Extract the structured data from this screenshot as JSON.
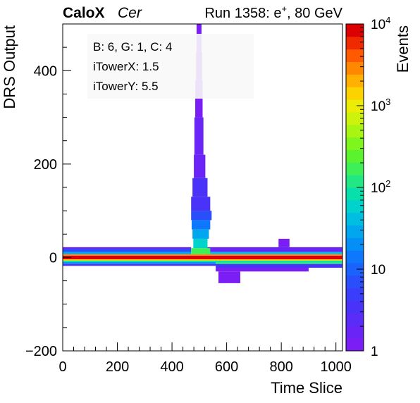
{
  "header": {
    "experiment": "CaloX",
    "channel": "Cer",
    "run_prefix": "Run 1358: e",
    "run_sup": "+",
    "run_suffix": ", 80 GeV"
  },
  "info_box": {
    "line1": "B: 6, G: 1, C: 4",
    "line2": "iTowerX: 1.5",
    "line3": "iTowerY: 5.5"
  },
  "colors": {
    "palette": [
      "#7b1ef5",
      "#6a25f6",
      "#5a2cf7",
      "#4a33f8",
      "#3a3df9",
      "#2a4efa",
      "#1a62fb",
      "#0d78fc",
      "#048ff7",
      "#00a6ee",
      "#00bde2",
      "#00d2cc",
      "#08e0ac",
      "#22e884",
      "#3ef058",
      "#5af32e",
      "#7ff51e",
      "#a8f514",
      "#cdf20c",
      "#ecec06",
      "#fcd200",
      "#ffb000",
      "#ff8800",
      "#ff5a00",
      "#f02a00",
      "#dd0000"
    ]
  },
  "chart_data": {
    "type": "heatmap",
    "xlabel": "Time Slice",
    "ylabel": "DRS Output",
    "zlabel": "Events",
    "xlim": [
      0,
      1024
    ],
    "ylim": [
      -200,
      500
    ],
    "zlim": [
      1,
      10000
    ],
    "z_scale": "log",
    "x_ticks": [
      0,
      200,
      400,
      600,
      800,
      1000
    ],
    "x_tick_labels": [
      "0",
      "200",
      "400",
      "600",
      "800",
      "1000"
    ],
    "y_ticks": [
      -200,
      0,
      200,
      400
    ],
    "y_tick_labels": [
      "−200",
      "0",
      "200",
      "400"
    ],
    "z_ticks": [
      {
        "value": 1,
        "base": "1",
        "exp": ""
      },
      {
        "value": 10,
        "base": "10",
        "exp": ""
      },
      {
        "value": 100,
        "base": "10",
        "exp": "2"
      },
      {
        "value": 1000,
        "base": "10",
        "exp": "3"
      },
      {
        "value": 10000,
        "base": "10",
        "exp": "4"
      }
    ],
    "bins": [
      {
        "x": [
          0,
          1024
        ],
        "y": [
          -4,
          4
        ],
        "z": 8000
      },
      {
        "x": [
          0,
          1024
        ],
        "y": [
          4,
          7
        ],
        "z": 2500
      },
      {
        "x": [
          0,
          1024
        ],
        "y": [
          -7,
          -4
        ],
        "z": 1500
      },
      {
        "x": [
          0,
          470
        ],
        "y": [
          7,
          12
        ],
        "z": 30
      },
      {
        "x": [
          0,
          470
        ],
        "y": [
          12,
          18
        ],
        "z": 6
      },
      {
        "x": [
          0,
          470
        ],
        "y": [
          18,
          22
        ],
        "z": 2
      },
      {
        "x": [
          0,
          1024
        ],
        "y": [
          -10,
          -7
        ],
        "z": 80
      },
      {
        "x": [
          0,
          560
        ],
        "y": [
          -14,
          -10
        ],
        "z": 20
      },
      {
        "x": [
          0,
          560
        ],
        "y": [
          -18,
          -14
        ],
        "z": 4
      },
      {
        "x": [
          560,
          1024
        ],
        "y": [
          -14,
          -10
        ],
        "z": 100
      },
      {
        "x": [
          560,
          1024
        ],
        "y": [
          -22,
          -14
        ],
        "z": 3
      },
      {
        "x": [
          560,
          900
        ],
        "y": [
          -30,
          -22
        ],
        "z": 1
      },
      {
        "x": [
          570,
          650
        ],
        "y": [
          -55,
          -30
        ],
        "z": 1
      },
      {
        "x": [
          530,
          1024
        ],
        "y": [
          7,
          12
        ],
        "z": 40
      },
      {
        "x": [
          530,
          1024
        ],
        "y": [
          12,
          22
        ],
        "z": 2
      },
      {
        "x": [
          790,
          830
        ],
        "y": [
          22,
          40
        ],
        "z": 1
      },
      {
        "x": [
          470,
          540
        ],
        "y": [
          7,
          20
        ],
        "z": 200
      },
      {
        "x": [
          478,
          530
        ],
        "y": [
          20,
          40
        ],
        "z": 60
      },
      {
        "x": [
          475,
          535
        ],
        "y": [
          40,
          60
        ],
        "z": 25
      },
      {
        "x": [
          472,
          540
        ],
        "y": [
          60,
          80
        ],
        "z": 12
      },
      {
        "x": [
          470,
          545
        ],
        "y": [
          80,
          100
        ],
        "z": 6
      },
      {
        "x": [
          470,
          540
        ],
        "y": [
          100,
          130
        ],
        "z": 4
      },
      {
        "x": [
          475,
          530
        ],
        "y": [
          130,
          170
        ],
        "z": 3
      },
      {
        "x": [
          480,
          522
        ],
        "y": [
          170,
          220
        ],
        "z": 2
      },
      {
        "x": [
          482,
          515
        ],
        "y": [
          220,
          300
        ],
        "z": 1.5
      },
      {
        "x": [
          485,
          512
        ],
        "y": [
          300,
          380
        ],
        "z": 1
      },
      {
        "x": [
          488,
          510
        ],
        "y": [
          380,
          440
        ],
        "z": 1
      },
      {
        "x": [
          490,
          508
        ],
        "y": [
          440,
          500
        ],
        "z": 1
      }
    ]
  }
}
